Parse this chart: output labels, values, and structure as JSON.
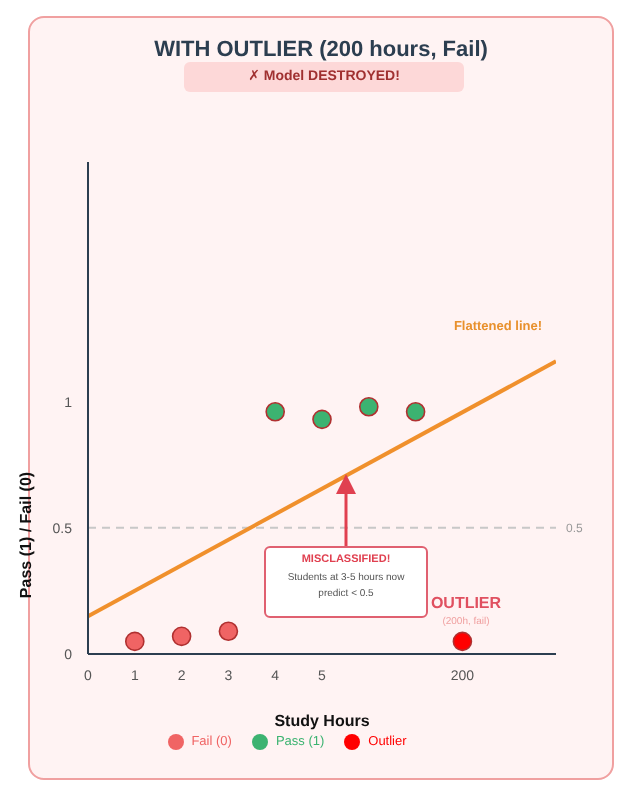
{
  "chart_data": {
    "type": "scatter",
    "title": "WITH OUTLIER (200 hours, Fail)",
    "subtitle": "✗ Model DESTROYED!",
    "xlabel": "Study Hours",
    "ylabel": "Pass (1) / Fail (0)",
    "categories": [
      "0",
      "1",
      "2",
      "3",
      "4",
      "5",
      null,
      null,
      "200",
      null,
      null
    ],
    "series": [
      {
        "name": "Fail (0)",
        "color": "#f06464",
        "values": [
          null,
          0.05,
          0.07,
          0.09,
          null,
          null,
          null,
          null,
          null,
          null,
          null
        ]
      },
      {
        "name": "Pass (1)",
        "color": "#3cb371",
        "values": [
          null,
          null,
          null,
          null,
          0.96,
          0.93,
          0.98,
          0.96,
          null,
          null,
          null
        ]
      },
      {
        "name": "Outlier",
        "color": "#ff0000",
        "values": [
          null,
          null,
          null,
          null,
          null,
          null,
          null,
          null,
          0.05,
          null,
          null
        ]
      },
      {
        "type": "line",
        "marker": "none",
        "color": "#f0902c",
        "values": [
          0.15,
          null,
          null,
          null,
          null,
          null,
          null,
          null,
          null,
          null,
          1.16
        ]
      }
    ],
    "ylim": [
      0,
      1.95
    ],
    "yticks": [
      0,
      0.5,
      1
    ],
    "ref_lines": [
      {
        "axis": "y",
        "value": 0.5,
        "label": "0.5",
        "color": "#c8c8c8",
        "line_style": "dashed"
      }
    ],
    "annotations": [
      "Flattened line!",
      "MISCLASSIFIED!",
      "Students at 3-5 hours now predict < 0.5",
      "OUTLIER",
      "(200h, fail)"
    ],
    "legend": "bottom",
    "marker": "circle"
  }
}
